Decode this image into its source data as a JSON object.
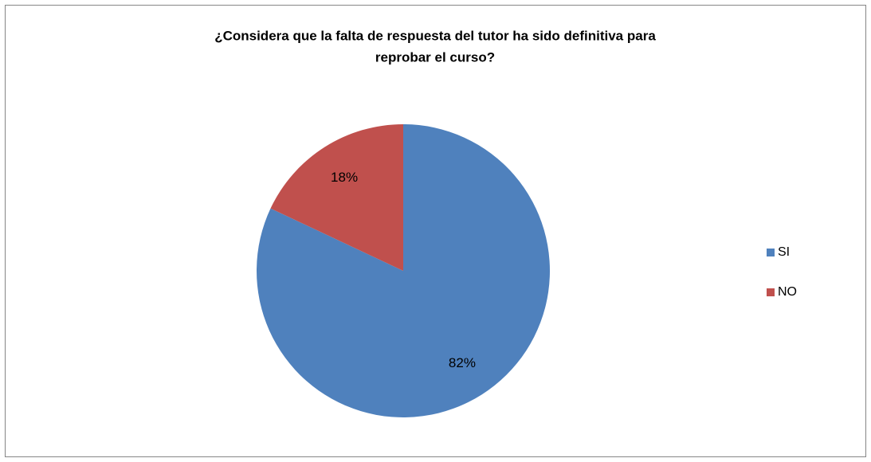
{
  "chart_data": {
    "type": "pie",
    "title": [
      "¿Considera que la falta de respuesta del tutor ha sido definitiva para",
      "reprobar el curso?"
    ],
    "categories": [
      "SI",
      "NO"
    ],
    "values": [
      82,
      18
    ],
    "value_labels": [
      "82%",
      "18%"
    ],
    "colors": [
      "#4f81bd",
      "#c0504d"
    ],
    "legend": "right"
  }
}
